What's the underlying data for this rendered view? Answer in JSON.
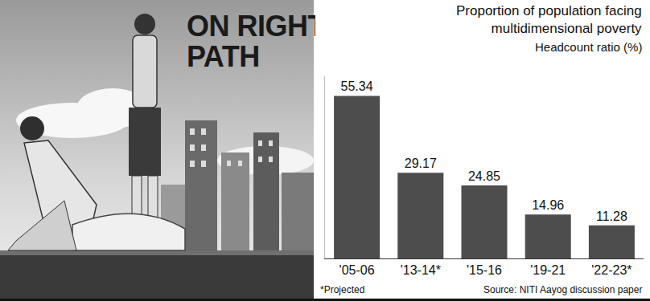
{
  "headline": "ON RIGHT\nPATH",
  "chart_data": {
    "type": "bar",
    "title": "Proportion of population facing\nmultidimensional poverty",
    "subtitle": "Headcount ratio (%)",
    "categories": [
      "'05-06",
      "'13-14*",
      "'15-16",
      "'19-21",
      "'22-23*"
    ],
    "values": [
      55.34,
      29.17,
      24.85,
      14.96,
      11.28
    ],
    "color": "#4d4d4d",
    "ylim": [
      0,
      62
    ],
    "data_labels": true,
    "tick_labels": "x",
    "grid": false,
    "note": "*Projected",
    "source": "Source: NITI Aayog discussion paper"
  }
}
